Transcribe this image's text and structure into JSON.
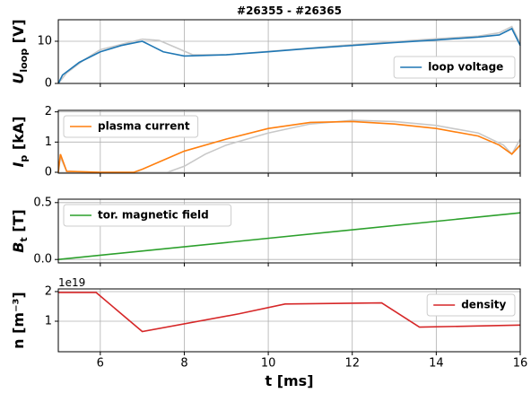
{
  "chart_data": [
    {
      "type": "line",
      "title": "#26355 - #26365",
      "ylabel": "U",
      "ylabel_sub": "loop",
      "ylabel_unit": " [V]",
      "xlim": [
        5,
        16
      ],
      "xticks": [
        6,
        8,
        10,
        12,
        14,
        16
      ],
      "ylim": [
        0,
        15.1
      ],
      "yticks": [
        0,
        10
      ],
      "grid": true,
      "legend": "lower right",
      "series": [
        {
          "color": "#c8c8c8",
          "x": [
            5,
            5.2,
            5.6,
            6,
            6.6,
            7,
            7.4,
            7.8,
            8.2,
            9,
            10,
            11,
            12,
            13,
            14,
            15,
            15.5,
            15.8,
            16
          ],
          "values": [
            0,
            2.5,
            5.5,
            8,
            9.5,
            10.5,
            10.2,
            8.5,
            6.8,
            6.8,
            7.6,
            8.4,
            9.2,
            9.9,
            10.6,
            11.2,
            12,
            13.5,
            9.5
          ]
        },
        {
          "name": "loop voltage",
          "color": "#1f77b4",
          "x": [
            5,
            5.1,
            5.5,
            6,
            6.5,
            7,
            7.2,
            7.5,
            8,
            9,
            10,
            11,
            12,
            13,
            14,
            15,
            15.5,
            15.8,
            16
          ],
          "values": [
            0,
            2,
            5,
            7.5,
            9,
            10,
            9,
            7.5,
            6.5,
            6.8,
            7.5,
            8.3,
            9,
            9.7,
            10.3,
            11,
            11.5,
            13,
            9
          ]
        }
      ]
    },
    {
      "type": "line",
      "ylabel": "I",
      "ylabel_sub": "p",
      "ylabel_unit": " [kA]",
      "xlim": [
        5,
        16
      ],
      "xticks": [
        6,
        8,
        10,
        12,
        14,
        16
      ],
      "ylim": [
        -0.03,
        2.05
      ],
      "yticks": [
        0,
        1,
        2
      ],
      "grid": true,
      "legend": "upper left",
      "series": [
        {
          "color": "#c8c8c8",
          "x": [
            5,
            5.05,
            5.2,
            6,
            7.6,
            8,
            8.5,
            9,
            10,
            11,
            12,
            13,
            14,
            15,
            15.6,
            15.8,
            16
          ],
          "values": [
            0,
            0.5,
            0.03,
            0,
            0,
            0.2,
            0.6,
            0.9,
            1.3,
            1.6,
            1.72,
            1.68,
            1.55,
            1.3,
            0.9,
            0.6,
            1.1
          ]
        },
        {
          "name": "plasma current",
          "color": "#ff7f0e",
          "x": [
            5,
            5.05,
            5.2,
            6,
            6.8,
            7,
            7.5,
            8,
            9,
            10,
            11,
            12,
            13,
            14,
            15,
            15.5,
            15.8,
            16
          ],
          "values": [
            0,
            0.6,
            0.03,
            0,
            0,
            0.1,
            0.4,
            0.7,
            1.1,
            1.45,
            1.65,
            1.68,
            1.6,
            1.45,
            1.2,
            0.9,
            0.6,
            0.9
          ]
        }
      ]
    },
    {
      "type": "line",
      "ylabel": "B",
      "ylabel_sub": "t",
      "ylabel_unit": " [T]",
      "xlim": [
        5,
        16
      ],
      "xticks": [
        6,
        8,
        10,
        12,
        14,
        16
      ],
      "ylim": [
        -0.03,
        0.53
      ],
      "yticks": [
        {
          "value": 0,
          "label": "0.0"
        },
        0.5
      ],
      "grid": true,
      "legend": "upper left",
      "series": [
        {
          "name": "tor. magnetic field",
          "color": "#2ca02c",
          "x": [
            5,
            16
          ],
          "values": [
            0,
            0.41
          ]
        }
      ]
    },
    {
      "type": "line",
      "ylabel": "n [m⁻³]",
      "offset_text": "1e19",
      "xlabel": "t [ms]",
      "xlim": [
        5,
        16
      ],
      "xticks": [
        6,
        8,
        10,
        12,
        14,
        16
      ],
      "ylim": [
        -0.03,
        2.09
      ],
      "yticks": [
        1,
        2
      ],
      "grid": true,
      "legend": "upper right",
      "series": [
        {
          "name": "density",
          "color": "#d62728",
          "x": [
            5,
            5.9,
            7,
            9.3,
            10.4,
            12.7,
            13.6,
            16
          ],
          "values": [
            1.97,
            1.97,
            0.65,
            1.25,
            1.58,
            1.62,
            0.8,
            0.87
          ]
        }
      ]
    }
  ]
}
